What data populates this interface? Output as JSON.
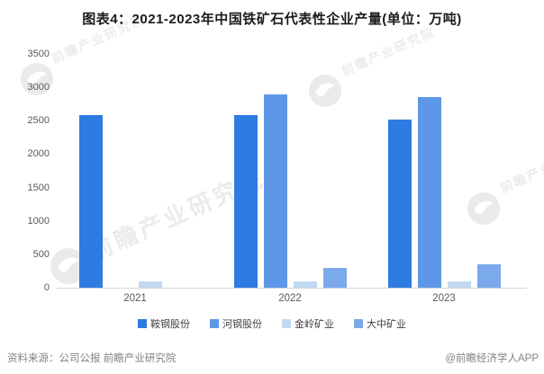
{
  "title": "图表4：2021-2023年中国铁矿石代表性企业产量(单位：万吨)",
  "chart_data": {
    "type": "bar",
    "title": "图表4：2021-2023年中国铁矿石代表性企业产量(单位：万吨)",
    "unit": "万吨",
    "categories": [
      "2021",
      "2022",
      "2023"
    ],
    "series": [
      {
        "name": "鞍钢股份",
        "color": "#2e7be1",
        "values": [
          2580,
          2590,
          2520
        ]
      },
      {
        "name": "河钢股份",
        "color": "#5f97e8",
        "values": [
          null,
          2900,
          2860
        ]
      },
      {
        "name": "金岭矿业",
        "color": "#c3d9f2",
        "values": [
          100,
          100,
          90
        ]
      },
      {
        "name": "大中矿业",
        "color": "#7aa9ec",
        "values": [
          null,
          300,
          350
        ]
      }
    ],
    "xlabel": "",
    "ylabel": "",
    "ylim": [
      0,
      3500
    ],
    "yticks": [
      0,
      500,
      1000,
      1500,
      2000,
      2500,
      3000,
      3500
    ],
    "grid": false,
    "legend_position": "bottom"
  },
  "footer": {
    "source": "资料来源：公司公报 前瞻产业研究院",
    "credit": "@前瞻经济学人APP"
  },
  "watermark": {
    "text": "前瞻产业研究院"
  }
}
